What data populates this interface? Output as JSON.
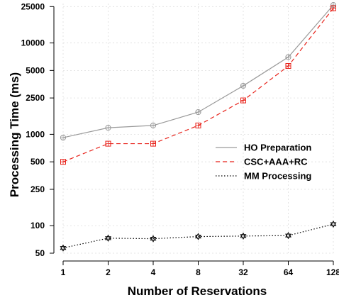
{
  "chart_data": {
    "type": "line",
    "xlabel": "Number of Reservations",
    "ylabel": "Processing Time (ms)",
    "y_scale": "log",
    "ylim": [
      50,
      27000
    ],
    "x_categories": [
      "1",
      "2",
      "4",
      "8",
      "32",
      "64",
      "128"
    ],
    "y_ticks": [
      50,
      100,
      250,
      500,
      1000,
      2500,
      5000,
      10000,
      25000
    ],
    "grid": true,
    "legend_position": "right",
    "series": [
      {
        "name": "HO Preparation",
        "line_style": "solid",
        "color": "#9a9a9a",
        "marker": "circle",
        "values": [
          920,
          1180,
          1250,
          1750,
          3400,
          7000,
          26000
        ]
      },
      {
        "name": "CSC+AAA+RC",
        "line_style": "dashed",
        "color": "#e8231b",
        "marker": "boxed-plus",
        "values": [
          500,
          790,
          790,
          1250,
          2350,
          5600,
          24000
        ]
      },
      {
        "name": "MM Processing",
        "line_style": "dotted",
        "color": "#000000",
        "marker": "star",
        "values": [
          57,
          73,
          72,
          76,
          77,
          78,
          104
        ]
      }
    ]
  },
  "colors": {
    "grid": "#dddddd",
    "axis": "#000000"
  }
}
